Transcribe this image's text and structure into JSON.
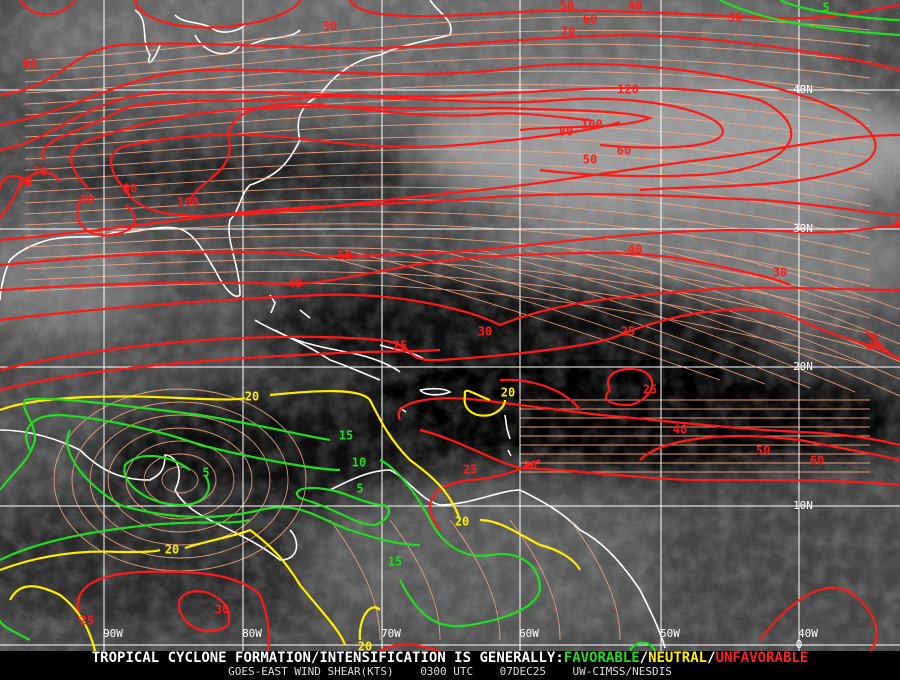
{
  "map": {
    "latitude_labels": [
      "40N",
      "30N",
      "20N",
      "10N",
      "0"
    ],
    "longitude_labels": [
      "90W",
      "80W",
      "70W",
      "60W",
      "50W",
      "40W"
    ],
    "colors": {
      "unfavorable": "#ff2020",
      "neutral": "#ffee00",
      "favorable": "#22dd22",
      "streamlines": "#f4a582",
      "coastlines": "#ffffff",
      "grid": "#ffffff"
    },
    "contour_labels_red": [
      "50",
      "50",
      "60",
      "70",
      "40",
      "30",
      "60",
      "120",
      "100",
      "80",
      "60",
      "50",
      "70",
      "60",
      "80",
      "90",
      "100",
      "50",
      "40",
      "40",
      "30",
      "25",
      "25",
      "30",
      "25",
      "25",
      "40",
      "50",
      "60",
      "30",
      "25",
      "30",
      "25",
      "3"
    ],
    "contour_labels_yellow": [
      "20",
      "20",
      "20",
      "20",
      "20"
    ],
    "contour_labels_green": [
      "15",
      "10",
      "5",
      "5",
      "15",
      "5"
    ]
  },
  "footer": {
    "headline_prefix": "TROPICAL CYCLONE FORMATION/INTENSIFICATION IS GENERALLY:",
    "favorable": "FAVORABLE",
    "separator1": "/",
    "neutral": "NEUTRAL",
    "separator2": "/",
    "unfavorable": "UNFAVORABLE",
    "product": "GOES-EAST WIND SHEAR(KTS)",
    "time": "0300 UTC",
    "date": "07DEC25",
    "source": "UW-CIMSS/NESDIS"
  }
}
